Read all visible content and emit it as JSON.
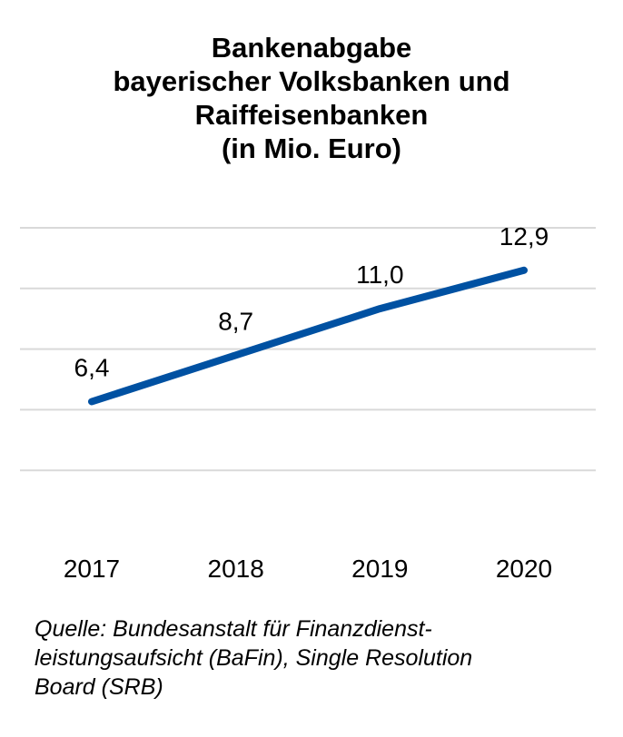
{
  "chart_data": {
    "type": "line",
    "title_lines": [
      "Bankenabgabe",
      "bayerischer Volksbanken und",
      "Raiffeisenbanken",
      "(in Mio. Euro)"
    ],
    "categories": [
      "2017",
      "2018",
      "2019",
      "2020"
    ],
    "series": [
      {
        "values": [
          6.4,
          8.7,
          11.0,
          12.9
        ],
        "data_labels": [
          "6,4",
          "8,7",
          "11,0",
          "12,9"
        ]
      }
    ],
    "ylim": [
      0,
      15
    ],
    "gridlines": [
      3,
      6,
      9,
      12,
      15
    ],
    "y_tick_labels_shown": false,
    "grid": true,
    "legend": "none",
    "line_color": "#0051a2",
    "grid_color": "#d9d9d9"
  },
  "source_lines": [
    "Quelle: Bundesanstalt für Finanzdienst-",
    "leistungsaufsicht (BaFin), Single Resolution",
    "Board (SRB)"
  ]
}
